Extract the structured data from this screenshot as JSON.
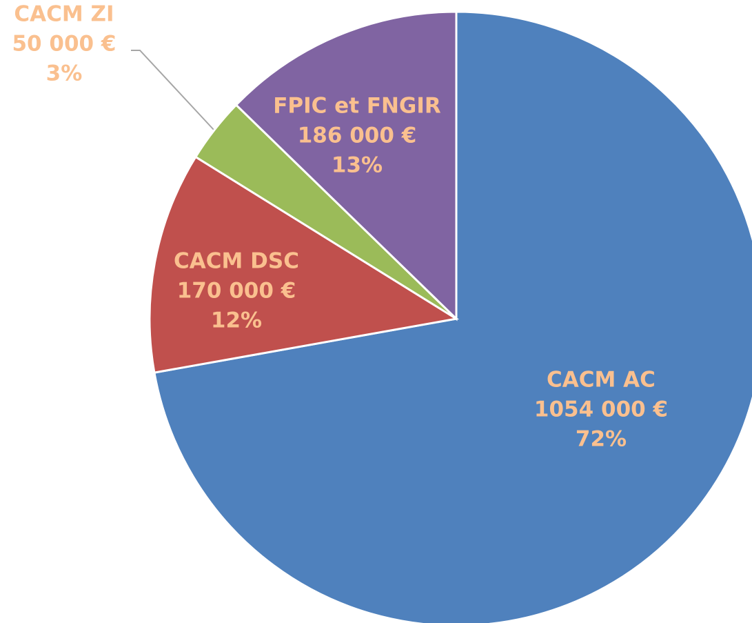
{
  "chart_data": {
    "type": "pie",
    "categories": [
      "CACM AC",
      "CACM DSC",
      "CACM ZI",
      "FPIC et FNGIR"
    ],
    "values": [
      1054000,
      170000,
      50000,
      186000
    ],
    "value_labels": [
      "1054 000 €",
      "170 000 €",
      "50 000 €",
      "186 000 €"
    ],
    "percentages": [
      72,
      12,
      3,
      13
    ],
    "percentage_labels": [
      "72%",
      "12%",
      "3%",
      "13%"
    ],
    "colors": [
      "#4f81bd",
      "#c0504d",
      "#9bbb59",
      "#8064a2"
    ],
    "label_color": "#fac08f"
  }
}
